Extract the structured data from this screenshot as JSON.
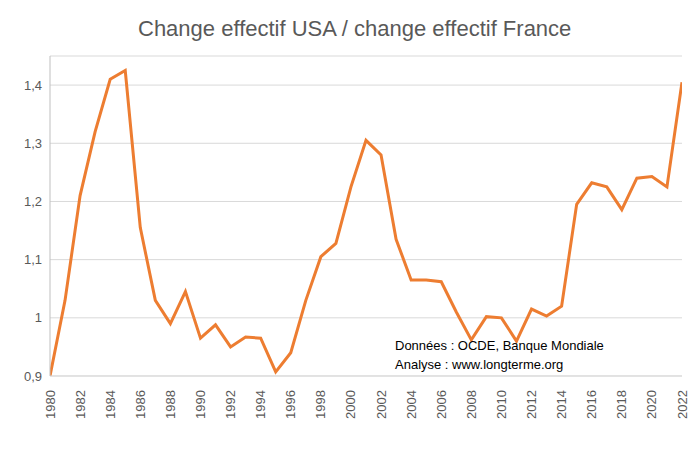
{
  "chart_data": {
    "type": "line",
    "title": "Change effectif USA / change effectif France",
    "annotations": [
      "Données : OCDE, Banque Mondiale",
      "Analyse : www.longterme.org"
    ],
    "x": [
      1980,
      1981,
      1982,
      1983,
      1984,
      1985,
      1986,
      1987,
      1988,
      1989,
      1990,
      1991,
      1992,
      1993,
      1994,
      1995,
      1996,
      1997,
      1998,
      1999,
      2000,
      2001,
      2002,
      2003,
      2004,
      2005,
      2006,
      2007,
      2008,
      2009,
      2010,
      2011,
      2012,
      2013,
      2014,
      2015,
      2016,
      2017,
      2018,
      2019,
      2020,
      2021,
      2022
    ],
    "values": [
      0.9,
      1.03,
      1.21,
      1.32,
      1.41,
      1.425,
      1.155,
      1.03,
      0.99,
      1.045,
      0.965,
      0.988,
      0.95,
      0.967,
      0.965,
      0.907,
      0.94,
      1.03,
      1.105,
      1.128,
      1.225,
      1.305,
      1.28,
      1.135,
      1.065,
      1.065,
      1.062,
      1.01,
      0.962,
      1.002,
      1.0,
      0.96,
      1.015,
      1.003,
      1.02,
      1.195,
      1.232,
      1.225,
      1.186,
      1.24,
      1.243,
      1.225,
      1.405
    ],
    "color": "#ed7d31",
    "xlim": [
      1980,
      2022
    ],
    "xticks": [
      1980,
      1982,
      1984,
      1986,
      1988,
      1990,
      1992,
      1994,
      1996,
      1998,
      2000,
      2002,
      2004,
      2006,
      2008,
      2010,
      2012,
      2014,
      2016,
      2018,
      2020,
      2022
    ],
    "ylim": [
      0.9,
      1.45
    ],
    "yticks": [
      {
        "value": 0.9,
        "label": "0,9"
      },
      1,
      {
        "value": 1.1,
        "label": "1,1"
      },
      {
        "value": 1.2,
        "label": "1,2"
      },
      {
        "value": 1.3,
        "label": "1,3"
      },
      {
        "value": 1.4,
        "label": "1,4"
      }
    ],
    "grid": true
  }
}
